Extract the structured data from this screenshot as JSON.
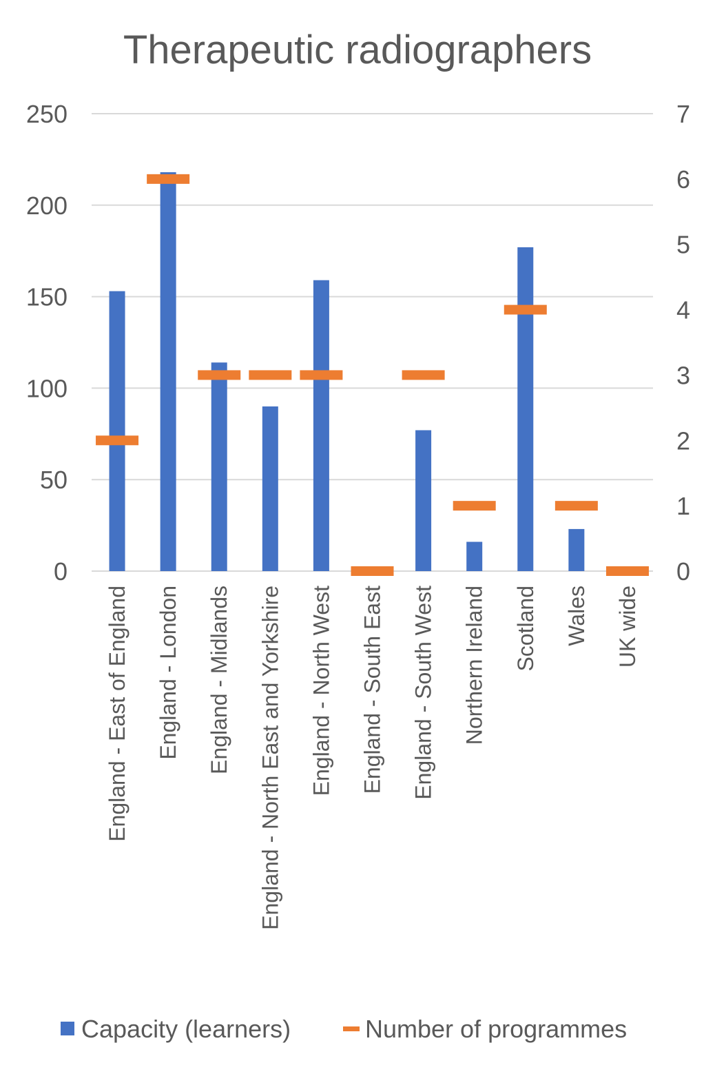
{
  "chart_data": {
    "type": "bar",
    "title": "Therapeutic radiographers",
    "categories": [
      "England - East of England",
      "England - London",
      "England - Midlands",
      "England - North East and Yorkshire",
      "England - North West",
      "England - South East",
      "England - South West",
      "Northern Ireland",
      "Scotland",
      "Wales",
      "UK wide"
    ],
    "series": [
      {
        "name": "Capacity (learners)",
        "axis": "left",
        "mark": "bar",
        "color": "#4472C4",
        "values": [
          153,
          218,
          114,
          90,
          159,
          0,
          77,
          16,
          177,
          23,
          0
        ]
      },
      {
        "name": "Number of programmes",
        "axis": "right",
        "mark": "dash",
        "color": "#ED7D31",
        "values": [
          2,
          6,
          3,
          3,
          3,
          0,
          3,
          1,
          4,
          1,
          0
        ]
      }
    ],
    "y_left": {
      "min": 0,
      "max": 250,
      "ticks": [
        0,
        50,
        100,
        150,
        200,
        250
      ]
    },
    "y_right": {
      "min": 0,
      "max": 7,
      "ticks": [
        0,
        1,
        2,
        3,
        4,
        5,
        6,
        7
      ]
    },
    "grid": true,
    "legend": "bottom"
  }
}
